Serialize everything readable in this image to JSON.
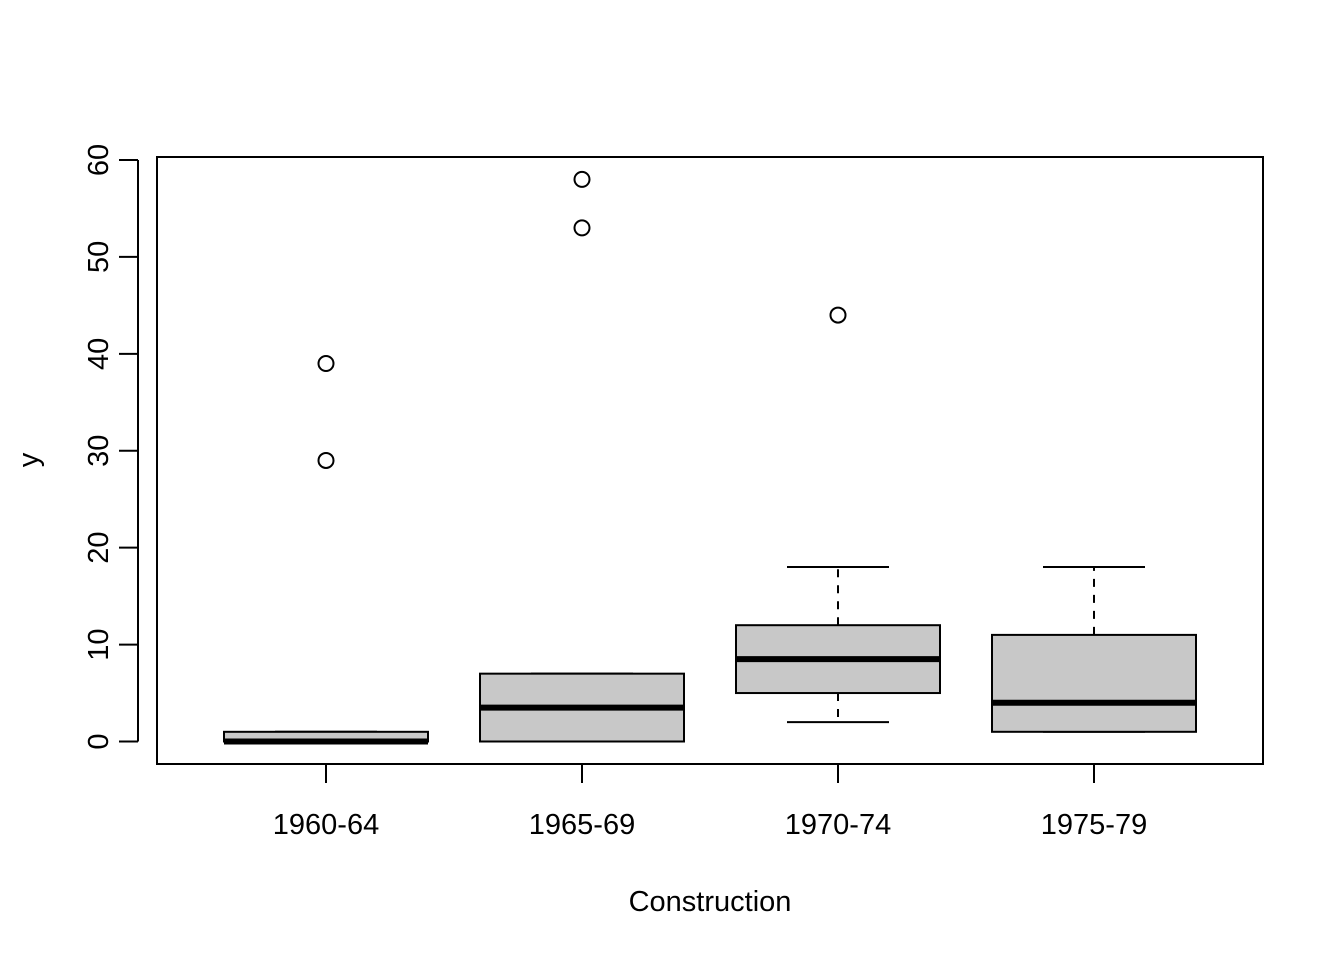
{
  "chart_data": {
    "type": "boxplot",
    "xlabel": "Construction",
    "ylabel": "y",
    "ylim": [
      -2.3,
      60.2
    ],
    "yticks": [
      0,
      10,
      20,
      30,
      40,
      50,
      60
    ],
    "categories": [
      "1960-64",
      "1965-69",
      "1970-74",
      "1975-79"
    ],
    "boxes": [
      {
        "category": "1960-64",
        "whisker_low": 0,
        "q1": 0,
        "median": 0,
        "q3": 1,
        "whisker_high": 1,
        "outliers": [
          29,
          39
        ]
      },
      {
        "category": "1965-69",
        "whisker_low": 0,
        "q1": 0,
        "median": 3.5,
        "q3": 7,
        "whisker_high": 7,
        "outliers": [
          53,
          58
        ]
      },
      {
        "category": "1970-74",
        "whisker_low": 2,
        "q1": 5,
        "median": 8.5,
        "q3": 12,
        "whisker_high": 18,
        "outliers": [
          44
        ]
      },
      {
        "category": "1975-79",
        "whisker_low": 1,
        "q1": 1,
        "median": 4,
        "q3": 11,
        "whisker_high": 18,
        "outliers": []
      }
    ],
    "box_fill": "#c8c8c8",
    "grid": false,
    "legend": "none"
  }
}
